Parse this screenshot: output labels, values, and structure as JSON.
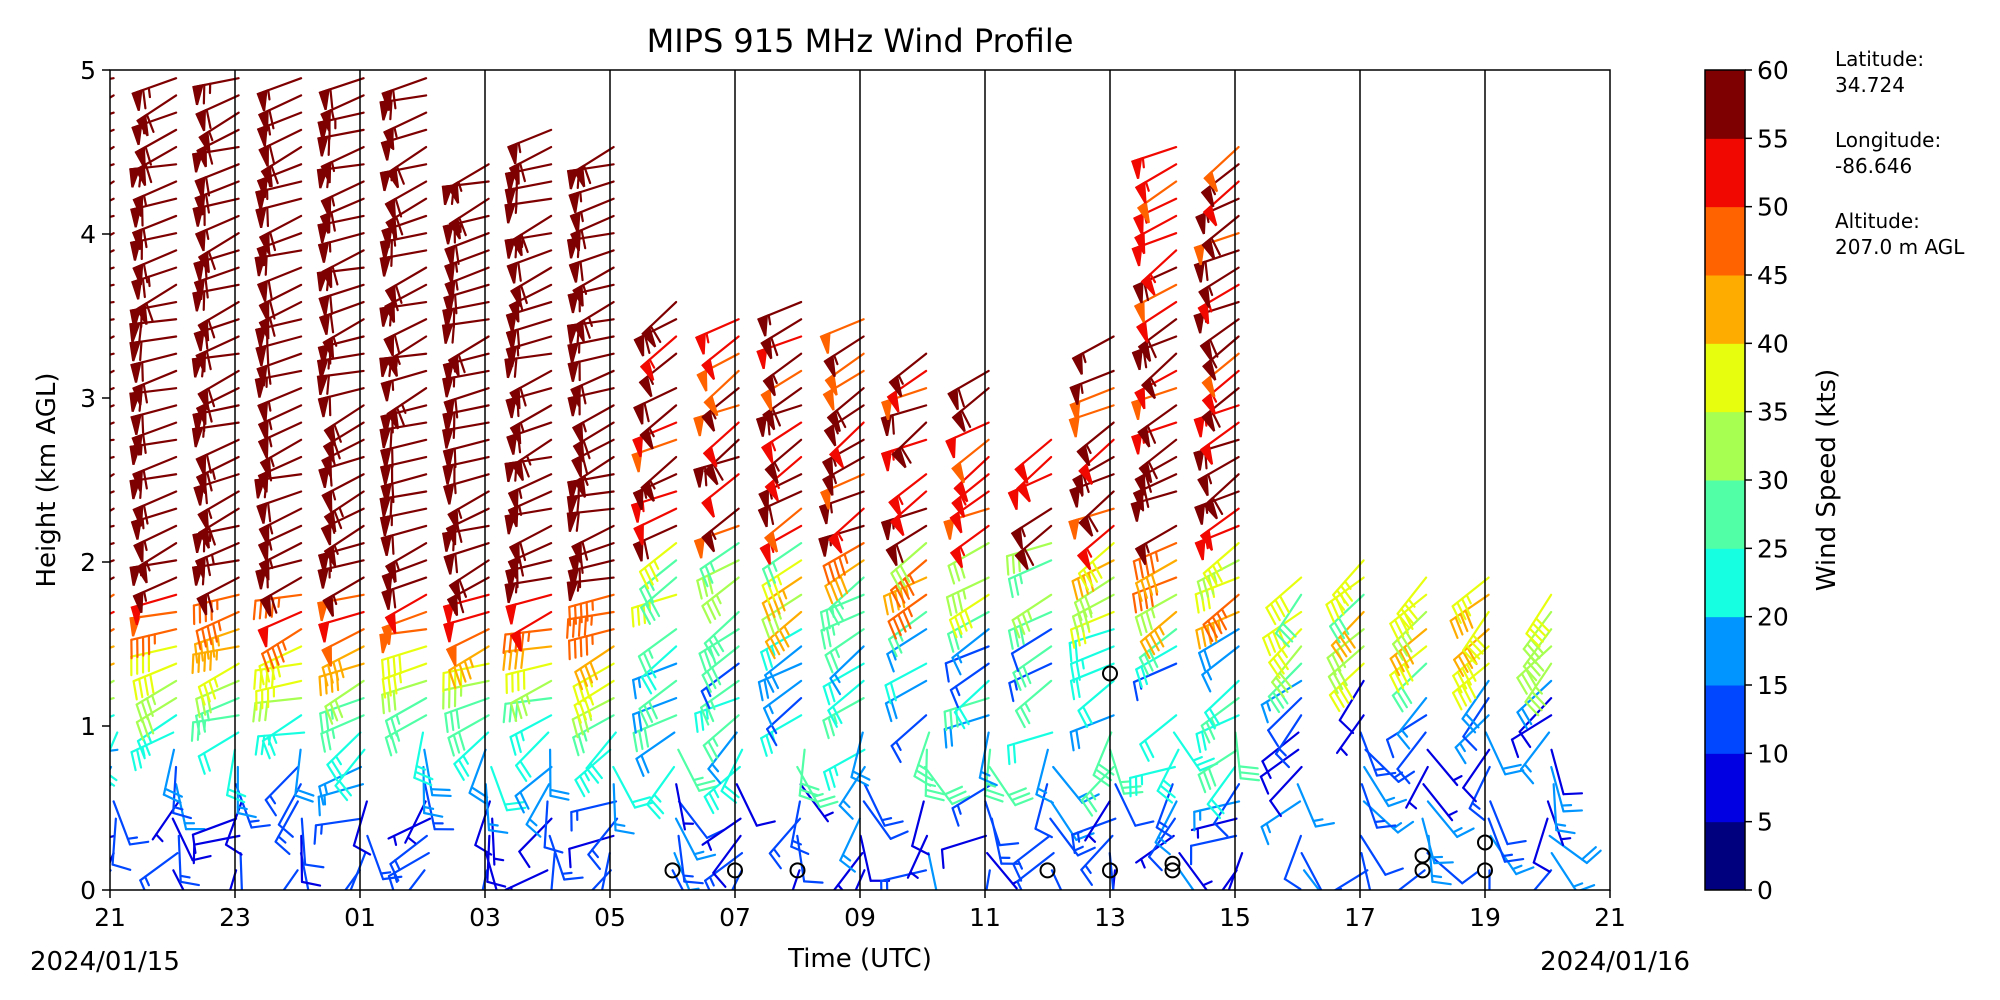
{
  "chart_data": {
    "type": "wind-barb-profile",
    "title": "MIPS 915 MHz Wind Profile",
    "xlabel": "Time (UTC)",
    "ylabel": "Height (km AGL)",
    "x_ticks": [
      "21",
      "23",
      "01",
      "03",
      "05",
      "07",
      "09",
      "11",
      "13",
      "15",
      "17",
      "19",
      "21"
    ],
    "y_ticks": [
      "0",
      "1",
      "2",
      "3",
      "4",
      "5"
    ],
    "ylim": [
      0,
      5
    ],
    "xlim_hours": [
      0,
      24
    ],
    "date_start": "2024/01/15",
    "date_end": "2024/01/16",
    "colorbar": {
      "label": "Wind Speed (kts)",
      "ticks": [
        "0",
        "5",
        "10",
        "15",
        "20",
        "25",
        "30",
        "35",
        "40",
        "45",
        "50",
        "55",
        "60"
      ],
      "colors": [
        "#00007f",
        "#0000e3",
        "#0047ff",
        "#0095ff",
        "#17ffe1",
        "#51ffa6",
        "#a6ff51",
        "#e7ff0f",
        "#ffac00",
        "#ff6300",
        "#f10800",
        "#7f0000"
      ]
    },
    "station": {
      "lat_label": "Latitude:",
      "lat_value": "34.724",
      "lon_label": "Longitude:",
      "lon_value": "-86.646",
      "alt_label": "Altitude:",
      "alt_value": "207.0 m AGL"
    },
    "profiles": [
      {
        "t": 0.25,
        "top": 4.95
      },
      {
        "t": 1.25,
        "top": 4.95
      },
      {
        "t": 2.25,
        "top": 4.95
      },
      {
        "t": 3.25,
        "top": 4.95
      },
      {
        "t": 4.25,
        "top": 4.95
      },
      {
        "t": 5.25,
        "top": 4.95
      },
      {
        "t": 6.25,
        "top": 4.45
      },
      {
        "t": 7.25,
        "top": 4.7
      },
      {
        "t": 8.25,
        "top": 4.6
      },
      {
        "t": 9.25,
        "top": 3.62
      },
      {
        "t": 10.25,
        "top": 3.5
      },
      {
        "t": 11.25,
        "top": 3.6
      },
      {
        "t": 12.25,
        "top": 3.5
      },
      {
        "t": 13.25,
        "top": 3.3
      },
      {
        "t": 14.25,
        "top": 3.2
      },
      {
        "t": 15.25,
        "top": 2.95
      },
      {
        "t": 16.25,
        "top": 3.4
      },
      {
        "t": 17.25,
        "top": 4.6
      },
      {
        "t": 18.25,
        "top": 4.6
      },
      {
        "t": 19.25,
        "top": 2.1
      },
      {
        "t": 20.25,
        "top": 2.05
      },
      {
        "t": 21.25,
        "top": 2.0
      },
      {
        "t": 22.25,
        "top": 1.95
      },
      {
        "t": 23.25,
        "top": 1.95
      }
    ],
    "calm_points": [
      {
        "t": 9.0,
        "h": 0.12
      },
      {
        "t": 10.0,
        "h": 0.12
      },
      {
        "t": 11.0,
        "h": 0.12
      },
      {
        "t": 15.0,
        "h": 0.12
      },
      {
        "t": 16.0,
        "h": 0.12
      },
      {
        "t": 16.0,
        "h": 1.32
      },
      {
        "t": 17.0,
        "h": 0.12
      },
      {
        "t": 17.0,
        "h": 0.16
      },
      {
        "t": 21.0,
        "h": 0.12
      },
      {
        "t": 21.0,
        "h": 0.21
      },
      {
        "t": 22.0,
        "h": 0.12
      },
      {
        "t": 22.0,
        "h": 0.29
      }
    ]
  }
}
